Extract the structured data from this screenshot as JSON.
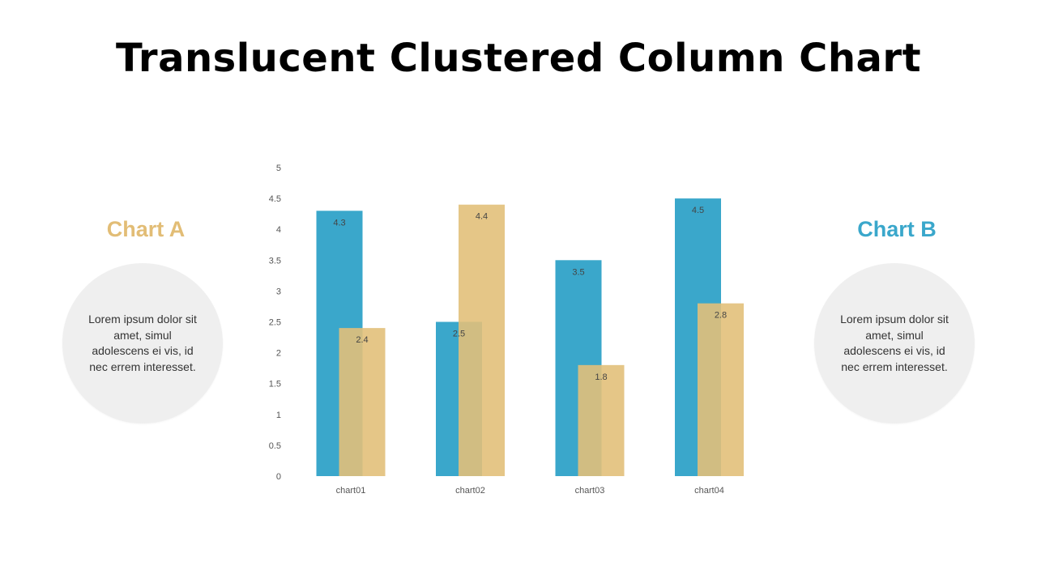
{
  "slide": {
    "title": "Translucent Clustered Column Chart"
  },
  "left_panel": {
    "heading": "Chart A",
    "body": "Lorem ipsum dolor sit amet, simul adolescens ei vis, id nec errem interesset."
  },
  "right_panel": {
    "heading": "Chart B",
    "body": "Lorem ipsum dolor sit amet, simul adolescens ei vis, id nec errem interesset."
  },
  "colors": {
    "chart_a": "#e2c07a",
    "chart_b": "#3aa7cb",
    "chart_a_heading": "#e2bd76",
    "chart_b_heading": "#3aa7cb"
  },
  "chart_data": {
    "type": "bar",
    "title": "",
    "xlabel": "",
    "ylabel": "",
    "categories": [
      "chart01",
      "chart02",
      "chart03",
      "chart04"
    ],
    "series": [
      {
        "values": [
          4.3,
          2.5,
          3.5,
          4.5
        ]
      },
      {
        "values": [
          2.4,
          4.4,
          1.8,
          2.8
        ]
      }
    ],
    "ylim": [
      0,
      5
    ],
    "yticks": [
      0,
      0.5,
      1,
      1.5,
      2,
      2.5,
      3,
      3.5,
      4,
      4.5,
      5
    ],
    "grid": false,
    "legend": "none",
    "data_labels": true,
    "overlap": true
  }
}
